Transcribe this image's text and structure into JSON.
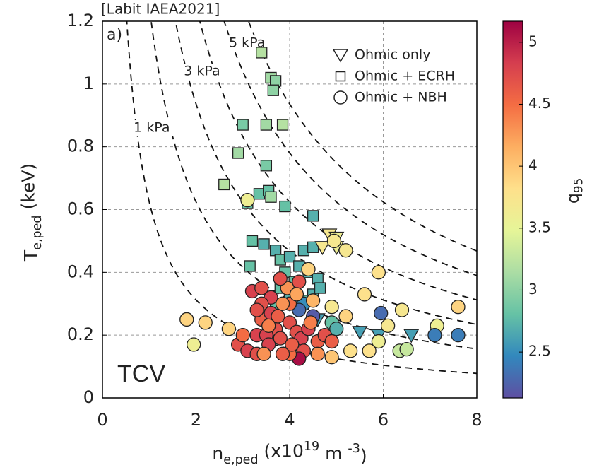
{
  "chart_data": {
    "type": "scatter",
    "title": "[Labit IAEA2021]",
    "panel_label": "a)",
    "annotation": "TCV",
    "ylabel": [
      {
        "text": "T"
      },
      {
        "text": "e,ped",
        "shift": "sub"
      },
      {
        "text": "  (keV)"
      }
    ],
    "xlabel": [
      {
        "text": "n"
      },
      {
        "text": "e,ped",
        "shift": "sub"
      },
      {
        "text": "   (x10"
      },
      {
        "text": "19",
        "shift": "sup"
      },
      {
        "text": " m "
      },
      {
        "text": "-3",
        "shift": "sup"
      },
      {
        "text": ")"
      }
    ],
    "xlim": [
      0,
      8
    ],
    "xticks": [
      0,
      2,
      4,
      6,
      8
    ],
    "ylim": [
      0,
      1.2
    ],
    "yticks": [
      0,
      0.2,
      0.4,
      0.6,
      0.8,
      1,
      1.2
    ],
    "grid": true,
    "isobars": [
      1,
      2,
      3,
      4,
      5,
      6
    ],
    "isobar_labels": [
      {
        "value": 1,
        "label": "1 kPa"
      },
      {
        "value": 3,
        "label": "3 kPa"
      },
      {
        "value": 5,
        "label": "5 kPa"
      }
    ],
    "colorbar": {
      "label": [
        {
          "text": "q"
        },
        {
          "text": "95",
          "shift": "sub"
        }
      ],
      "clim": [
        2.13,
        5.17
      ],
      "ticks": [
        2.5,
        3,
        3.5,
        4,
        4.5,
        5
      ],
      "colormap": [
        "#5e4fa2",
        "#3288bd",
        "#66c2a5",
        "#abdda4",
        "#e6f598",
        "#fee08b",
        "#fdae61",
        "#f46d43",
        "#d53e4f",
        "#9e0142"
      ]
    },
    "legend": "upper right",
    "series": [
      {
        "name": "Ohmic only",
        "marker": "triangle",
        "x": [
          4.85,
          5.0,
          4.7,
          5.0,
          5.5,
          5.9,
          6.6,
          4.6
        ],
        "values": [
          0.52,
          0.51,
          0.48,
          0.48,
          0.21,
          0.2,
          0.2,
          0.25
        ],
        "q": [
          3.7,
          3.6,
          3.7,
          3.6,
          2.6,
          2.6,
          2.6,
          2.6
        ]
      },
      {
        "name": "Ohmic + ECRH",
        "marker": "square",
        "x": [
          3.4,
          3.6,
          3.7,
          3.65,
          3.0,
          3.5,
          3.85,
          2.9,
          3.5,
          2.6,
          3.35,
          3.55,
          3.6,
          3.1,
          3.9,
          4.5,
          3.2,
          3.45,
          3.7,
          3.15,
          3.8,
          4.0,
          4.3,
          4.5,
          4.2,
          3.9,
          4.4,
          4.6,
          4.1,
          3.8,
          4.5,
          4.65,
          4.3,
          4.0,
          3.7
        ],
        "values": [
          1.1,
          1.02,
          1.01,
          0.98,
          0.87,
          0.87,
          0.87,
          0.78,
          0.74,
          0.68,
          0.65,
          0.66,
          0.64,
          0.62,
          0.61,
          0.58,
          0.5,
          0.49,
          0.47,
          0.42,
          0.44,
          0.45,
          0.47,
          0.48,
          0.42,
          0.4,
          0.4,
          0.38,
          0.37,
          0.35,
          0.33,
          0.35,
          0.31,
          0.33,
          0.3
        ],
        "q": [
          3.2,
          3.1,
          3.0,
          3.0,
          2.9,
          3.1,
          3.2,
          3.1,
          2.9,
          3.2,
          2.8,
          2.8,
          3.1,
          2.8,
          2.8,
          2.7,
          2.8,
          2.7,
          2.7,
          2.8,
          2.8,
          2.7,
          2.7,
          2.7,
          2.7,
          2.8,
          2.7,
          2.7,
          2.8,
          2.8,
          2.7,
          2.7,
          2.8,
          2.7,
          2.8
        ]
      },
      {
        "name": "Ohmic + NBH",
        "marker": "circle",
        "x": [
          3.1,
          4.95,
          5.2,
          5.9,
          5.6,
          4.4,
          7.6,
          6.4,
          5.95,
          6.1,
          7.15,
          7.1,
          7.6,
          6.35,
          6.5,
          5.7,
          5.9,
          5.3,
          4.9,
          1.8,
          2.2,
          2.7,
          1.95,
          4.3,
          4.2,
          4.5,
          4.9,
          5.2,
          4.9,
          5.0,
          2.9,
          3.1,
          3.3,
          3.4,
          3.2,
          3.4,
          3.6,
          3.4,
          3.6,
          3.3,
          3.7,
          3.5,
          3.55,
          3.8,
          3.75,
          4.0,
          4.0,
          4.15,
          4.25,
          4.3,
          4.2,
          4.0,
          4.05,
          3.85,
          4.4,
          4.6,
          4.75,
          4.6,
          3.3,
          3.0,
          3.95,
          3.8,
          4.2,
          4.15,
          3.55,
          3.85,
          4.45,
          4.5,
          3.45,
          4.9
        ],
        "values": [
          0.63,
          0.5,
          0.47,
          0.4,
          0.33,
          0.41,
          0.29,
          0.28,
          0.27,
          0.23,
          0.23,
          0.2,
          0.2,
          0.15,
          0.155,
          0.15,
          0.18,
          0.15,
          0.13,
          0.25,
          0.24,
          0.22,
          0.17,
          0.3,
          0.28,
          0.26,
          0.29,
          0.26,
          0.24,
          0.22,
          0.17,
          0.15,
          0.2,
          0.25,
          0.34,
          0.35,
          0.32,
          0.3,
          0.27,
          0.28,
          0.22,
          0.2,
          0.17,
          0.19,
          0.26,
          0.24,
          0.3,
          0.21,
          0.19,
          0.15,
          0.125,
          0.14,
          0.17,
          0.14,
          0.22,
          0.18,
          0.2,
          0.14,
          0.14,
          0.2,
          0.35,
          0.38,
          0.37,
          0.33,
          0.23,
          0.3,
          0.24,
          0.31,
          0.14,
          0.18
        ],
        "q": [
          3.6,
          3.7,
          3.7,
          3.8,
          3.8,
          3.9,
          3.9,
          3.7,
          2.3,
          3.7,
          3.6,
          2.4,
          2.4,
          3.3,
          3.3,
          3.8,
          3.6,
          3.8,
          4.0,
          3.9,
          3.9,
          3.9,
          3.6,
          2.5,
          2.3,
          2.2,
          3.7,
          3.9,
          2.8,
          2.7,
          4.7,
          4.8,
          4.8,
          4.6,
          4.8,
          4.7,
          4.8,
          4.7,
          4.8,
          4.7,
          4.7,
          4.8,
          4.8,
          4.7,
          4.6,
          4.7,
          4.5,
          4.7,
          4.8,
          4.7,
          5.1,
          4.5,
          4.6,
          4.6,
          4.8,
          4.6,
          4.7,
          4.3,
          4.7,
          4.5,
          4.3,
          4.7,
          4.7,
          4.2,
          4.4,
          4.3,
          4.4,
          4.1,
          4.3,
          4.6
        ]
      }
    ]
  }
}
